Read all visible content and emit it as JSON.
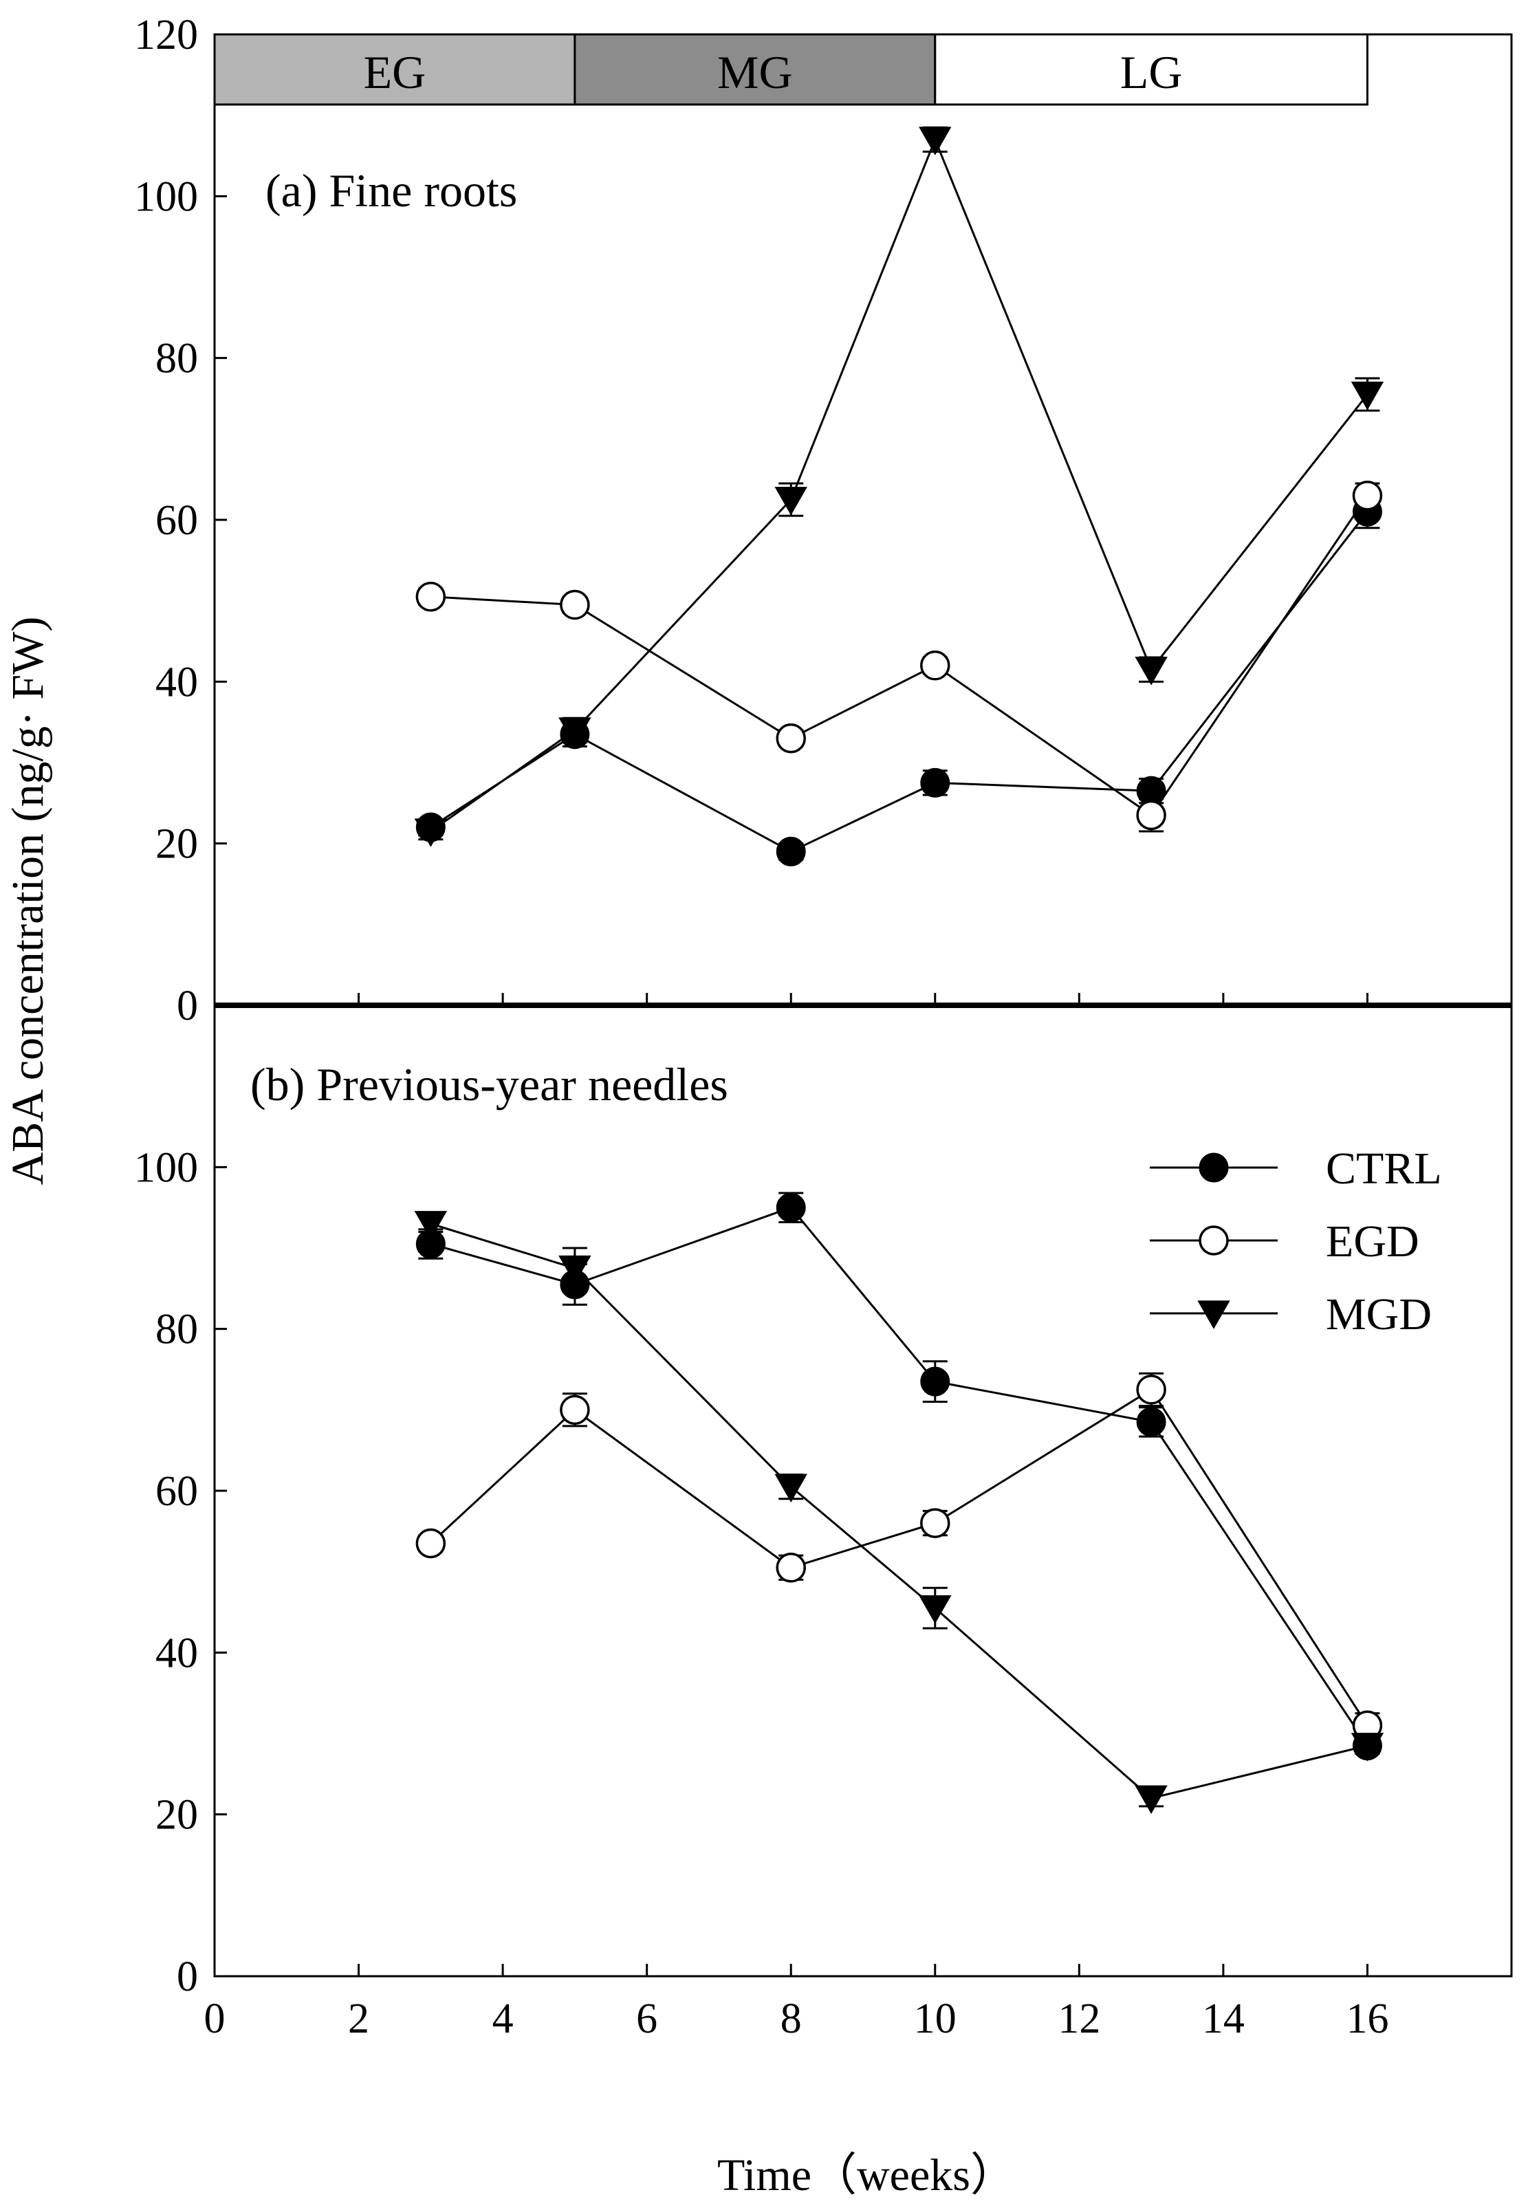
{
  "chart_data": {
    "type": "line",
    "ylabel": "ABA concentration (ng/g· FW)",
    "xlabel": "Time（weeks）",
    "xlim": [
      0,
      18
    ],
    "x_ticks": [
      0,
      2,
      4,
      6,
      8,
      10,
      12,
      14,
      16
    ],
    "x_tick_labels": [
      "0",
      "2",
      "4",
      "6",
      "8",
      "10",
      "12",
      "14",
      "16"
    ],
    "stages": [
      {
        "label": "EG",
        "x_start": 0,
        "x_end": 5,
        "color": "#b4b4b4"
      },
      {
        "label": "MG",
        "x_start": 5,
        "x_end": 10,
        "color": "#8c8c8c"
      },
      {
        "label": "LG",
        "x_start": 10,
        "x_end": 16,
        "color": "#ffffff"
      }
    ],
    "legend": [
      {
        "name": "CTRL",
        "marker": "filled-circle"
      },
      {
        "name": "EGD",
        "marker": "open-circle"
      },
      {
        "name": "MGD",
        "marker": "filled-triangle-down"
      }
    ],
    "panels": [
      {
        "title": "(a) Fine roots",
        "ylim": [
          0,
          120
        ],
        "y_ticks": [
          0,
          20,
          40,
          60,
          80,
          100,
          120
        ],
        "y_tick_labels": [
          "0",
          "20",
          "40",
          "60",
          "80",
          "100",
          "120"
        ],
        "x": [
          3,
          5,
          8,
          10,
          13,
          16
        ],
        "series": [
          {
            "name": "CTRL",
            "values": [
              22,
              33.5,
              19,
              27.5,
              26.5,
              61
            ],
            "errors": [
              1,
              1.5,
              1,
              1.5,
              1.5,
              2
            ]
          },
          {
            "name": "EGD",
            "values": [
              50.5,
              49.5,
              33,
              42,
              23.5,
              63
            ],
            "errors": [
              1,
              1,
              1,
              1,
              2,
              1.5
            ]
          },
          {
            "name": "MGD",
            "values": [
              21.5,
              34,
              62.5,
              107,
              41.5,
              75.5
            ],
            "errors": [
              1,
              1.5,
              2,
              1.5,
              1.5,
              2
            ]
          }
        ]
      },
      {
        "title": "(b) Previous-year needles",
        "ylim": [
          0,
          120
        ],
        "y_ticks": [
          0,
          20,
          40,
          60,
          80,
          100
        ],
        "y_tick_labels": [
          "0",
          "20",
          "40",
          "60",
          "80",
          "100"
        ],
        "x": [
          3,
          5,
          8,
          10,
          13,
          16
        ],
        "series": [
          {
            "name": "CTRL",
            "values": [
              90.5,
              85.5,
              95,
              73.5,
              68.5,
              28.5
            ],
            "errors": [
              1.8,
              2.5,
              1.8,
              2.5,
              1.8,
              1
            ]
          },
          {
            "name": "EGD",
            "values": [
              53.5,
              70,
              50.5,
              56,
              72.5,
              31
            ],
            "errors": [
              1,
              2,
              1.5,
              1.5,
              2,
              1.5
            ]
          },
          {
            "name": "MGD",
            "values": [
              93,
              87.5,
              60.5,
              45.5,
              22,
              28.5
            ],
            "errors": [
              1,
              2.5,
              1.5,
              2.5,
              1,
              1
            ]
          }
        ]
      }
    ]
  }
}
